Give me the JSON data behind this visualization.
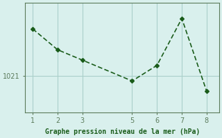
{
  "x": [
    1,
    2,
    3,
    5,
    6,
    7,
    8
  ],
  "y": [
    1025.5,
    1023.5,
    1022.5,
    1020.5,
    1022.0,
    1026.5,
    1019.5
  ],
  "line_color": "#1a5c1a",
  "marker_color": "#1a5c1a",
  "background_color": "#d9f0ed",
  "grid_color": "#aacfca",
  "axis_color": "#5a7a5a",
  "xlabel": "Graphe pression niveau de la mer (hPa)",
  "ytick_labels": [
    "1021"
  ],
  "ytick_values": [
    1021
  ],
  "xtick_values": [
    1,
    2,
    3,
    5,
    6,
    7,
    8
  ],
  "xlim": [
    0.7,
    8.5
  ],
  "ylim": [
    1017.5,
    1028.0
  ]
}
